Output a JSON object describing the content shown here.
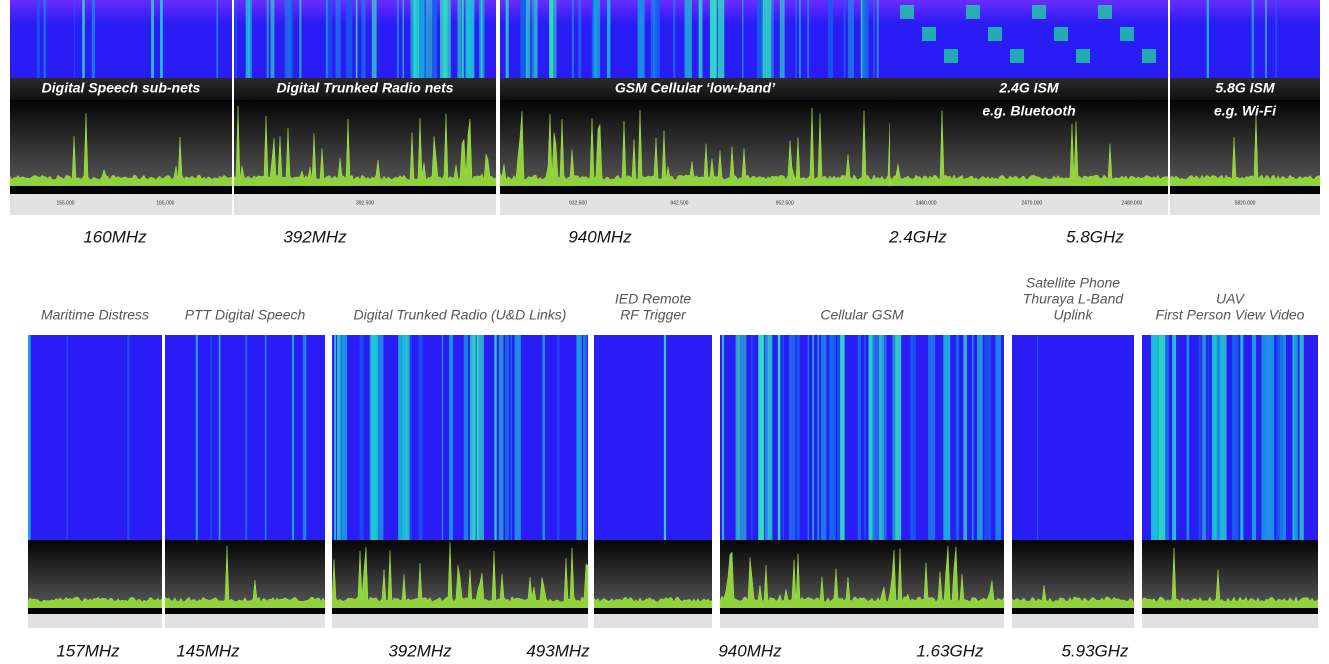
{
  "top_panels": [
    {
      "label": [
        "Digital Speech sub-nets"
      ],
      "ticks": [
        "155.000",
        "165.000"
      ]
    },
    {
      "label": [
        "Digital Trunked Radio nets"
      ],
      "ticks": [
        "392.500"
      ]
    },
    {
      "label": [
        "GSM Cellular ‘low-band’"
      ],
      "ticks": [
        "932.500",
        "942.500",
        "952.500"
      ]
    },
    {
      "label": [
        "2.4G ISM",
        "e.g. Bluetooth"
      ],
      "ticks": [
        "2460.000",
        "2470.000",
        "2480.000"
      ]
    },
    {
      "label": [
        "5.8G ISM",
        "e.g. Wi-Fi"
      ],
      "ticks": [
        "5820.000"
      ]
    }
  ],
  "top_frequencies": [
    "160MHz",
    "392MHz",
    "940MHz",
    "2.4GHz",
    "5.8GHz"
  ],
  "bottom_panels": [
    {
      "label": [
        "Maritime Distress"
      ]
    },
    {
      "label": [
        "PTT Digital Speech"
      ]
    },
    {
      "label": [
        "Digital Trunked Radio (U&D Links)"
      ]
    },
    {
      "label": [
        "IED Remote",
        "RF Trigger"
      ]
    },
    {
      "label": [
        "Cellular GSM"
      ]
    },
    {
      "label": [
        "Satellite Phone",
        "Thuraya L-Band",
        "Uplink"
      ]
    },
    {
      "label": [
        "UAV",
        "First Person View Video"
      ]
    }
  ],
  "bottom_frequencies": [
    "157MHz",
    "145MHz",
    "392MHz",
    "493MHz",
    "940MHz",
    "1.63GHz",
    "5.93GHz"
  ]
}
